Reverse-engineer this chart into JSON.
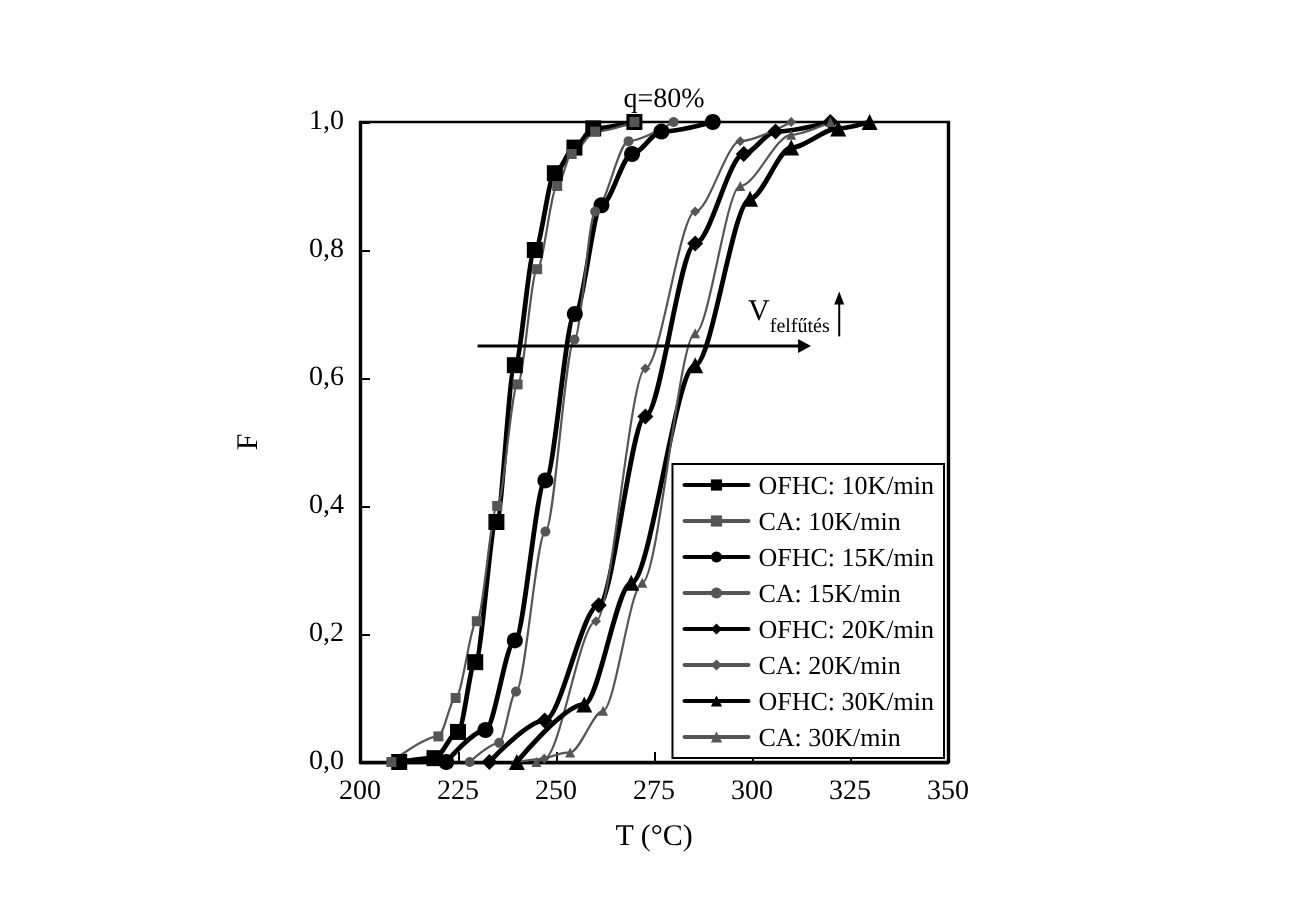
{
  "chart_data": {
    "type": "line",
    "title": "q=80%",
    "xlabel": "T (°C)",
    "ylabel": "F",
    "xlim": [
      200,
      350
    ],
    "xticks": [
      200,
      225,
      250,
      275,
      300,
      325,
      350
    ],
    "ylim": [
      0,
      1
    ],
    "yticks": [
      {
        "value": 0,
        "label": "0,0"
      },
      {
        "value": 0.2,
        "label": "0,2"
      },
      {
        "value": 0.4,
        "label": "0,4"
      },
      {
        "value": 0.6,
        "label": "0,6"
      },
      {
        "value": 0.8,
        "label": "0,8"
      },
      {
        "value": 1,
        "label": "1,0"
      }
    ],
    "grid": false,
    "legend": "bottom right",
    "line_style": "solid",
    "annotations": [
      "V$_{felfűtés}$"
    ],
    "series": [
      {
        "name": "OFHC: 10K/min",
        "color": "#000000",
        "marker": "square",
        "x": [
          210,
          219,
          225,
          229.4,
          234.8,
          239.5,
          244.6,
          249.7,
          254.7,
          259.5,
          270
        ],
        "values": [
          0,
          0.006,
          0.047,
          0.156,
          0.375,
          0.62,
          0.8,
          0.92,
          0.96,
          0.99,
          1
        ]
      },
      {
        "name": "CA: 10K/min",
        "color": "#555555",
        "marker": "square",
        "x": [
          208,
          220,
          224.4,
          229.8,
          235,
          240.2,
          245.2,
          250.3,
          254,
          260,
          270
        ],
        "values": [
          0,
          0.04,
          0.1,
          0.22,
          0.4,
          0.59,
          0.77,
          0.9,
          0.95,
          0.985,
          1
        ]
      },
      {
        "name": "OFHC: 15K/min",
        "color": "#000000",
        "marker": "circle",
        "x": [
          222,
          232,
          239.5,
          247.3,
          254.8,
          261.6,
          269.4,
          276.9,
          290
        ],
        "values": [
          0,
          0.05,
          0.19,
          0.44,
          0.7,
          0.87,
          0.95,
          0.985,
          1
        ]
      },
      {
        "name": "CA: 15K/min",
        "color": "#555555",
        "marker": "circle",
        "x": [
          228,
          235.5,
          239.8,
          247.3,
          254.7,
          260,
          268.5,
          280
        ],
        "values": [
          0,
          0.03,
          0.11,
          0.36,
          0.66,
          0.86,
          0.97,
          1
        ]
      },
      {
        "name": "OFHC: 20K/min",
        "color": "#000000",
        "marker": "diamond",
        "x": [
          233,
          247.1,
          260.9,
          272.8,
          285.5,
          297.9,
          306,
          320
        ],
        "values": [
          0,
          0.065,
          0.245,
          0.54,
          0.81,
          0.95,
          0.985,
          1
        ]
      },
      {
        "name": "CA: 20K/min",
        "color": "#555555",
        "marker": "diamond",
        "x": [
          240,
          247,
          260.2,
          272.8,
          285.5,
          297,
          310
        ],
        "values": [
          0,
          0.005,
          0.22,
          0.615,
          0.86,
          0.97,
          1
        ]
      },
      {
        "name": "OFHC: 30K/min",
        "color": "#000000",
        "marker": "triangle",
        "x": [
          240,
          257.2,
          269.2,
          285.5,
          299.5,
          310,
          322,
          330
        ],
        "values": [
          0,
          0.09,
          0.28,
          0.62,
          0.88,
          0.96,
          0.99,
          1
        ]
      },
      {
        "name": "CA: 30K/min",
        "color": "#555555",
        "marker": "triangle",
        "x": [
          245,
          253.6,
          262,
          272,
          285.5,
          297,
          310,
          320
        ],
        "values": [
          0,
          0.015,
          0.08,
          0.28,
          0.67,
          0.9,
          0.98,
          1
        ]
      }
    ]
  }
}
